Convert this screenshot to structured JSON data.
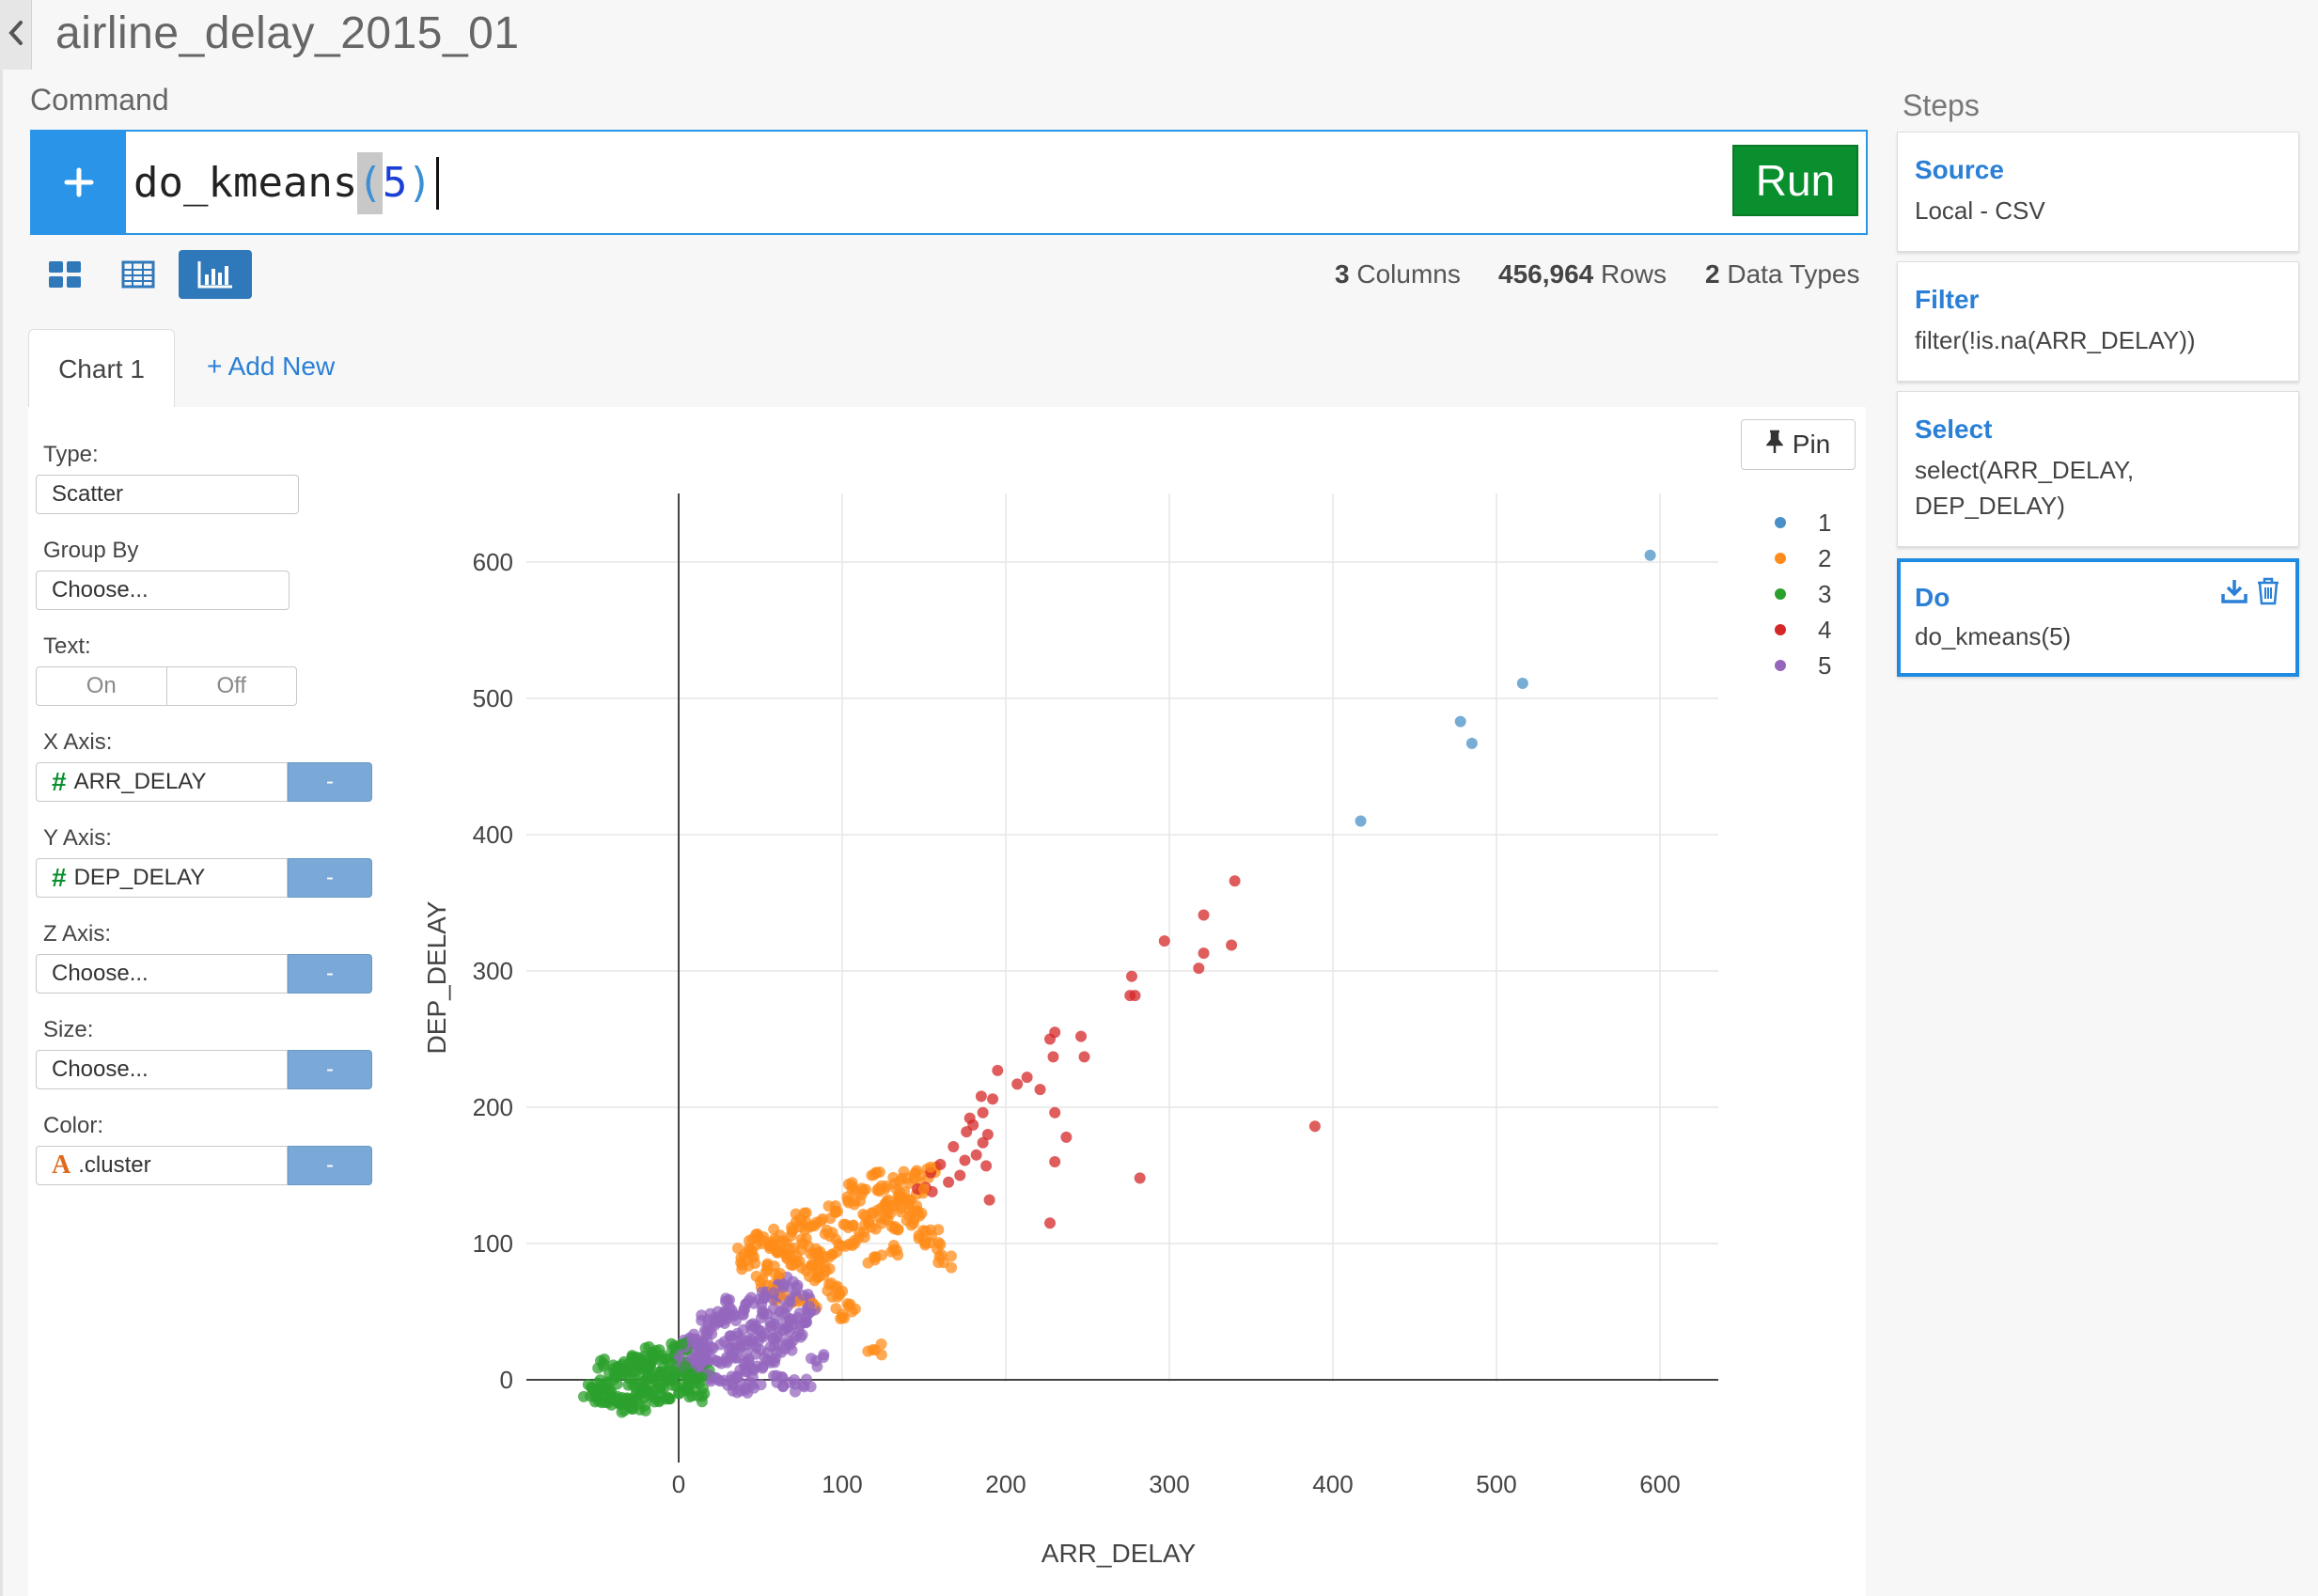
{
  "header": {
    "title": "airline_delay_2015_01",
    "command_label": "Command",
    "command": {
      "func": "do_kmeans",
      "open_paren": "(",
      "arg": "5",
      "close_paren": ")"
    },
    "run_label": "Run"
  },
  "stats": {
    "columns_count": "3",
    "columns_label": "Columns",
    "rows_count": "456,964",
    "rows_label": "Rows",
    "types_count": "2",
    "types_label": "Data Types"
  },
  "tabs": {
    "chart1": "Chart 1",
    "add_new": "+ Add New"
  },
  "chart_settings": {
    "type_label": "Type:",
    "type_value": "Scatter",
    "group_by_label": "Group By",
    "group_by_value": "Choose...",
    "text_label": "Text:",
    "text_on": "On",
    "text_off": "Off",
    "x_axis_label": "X Axis:",
    "x_axis_value": "ARR_DELAY",
    "y_axis_label": "Y Axis:",
    "y_axis_value": "DEP_DELAY",
    "z_axis_label": "Z Axis:",
    "z_axis_value": "Choose...",
    "size_label": "Size:",
    "size_value": "Choose...",
    "color_label": "Color:",
    "color_value": ".cluster",
    "minus_label": "-"
  },
  "pin_label": "Pin",
  "steps": {
    "label": "Steps",
    "items": [
      {
        "title": "Source",
        "body": "Local - CSV"
      },
      {
        "title": "Filter",
        "body": "filter(!is.na(ARR_DELAY))"
      },
      {
        "title": "Select",
        "body": "select(ARR_DELAY, DEP_DELAY)"
      },
      {
        "title": "Do",
        "body": "do_kmeans(5)"
      }
    ]
  },
  "icons": {
    "back": "chevron-left-icon",
    "plus": "plus-icon",
    "views": [
      "grid-view-icon",
      "table-view-icon",
      "chart-view-icon"
    ],
    "pin": "pin-icon",
    "download": "download-icon",
    "trash": "trash-icon"
  },
  "colors": {
    "accent": "#2a95e8",
    "run": "#0a8f2e",
    "cluster1": "#4a90c6",
    "cluster2": "#ff8c1a",
    "cluster3": "#2ca02c",
    "cluster4": "#d62728",
    "cluster5": "#9467bd"
  },
  "chart_data": {
    "type": "scatter",
    "xlabel": "ARR_DELAY",
    "ylabel": "DEP_DELAY",
    "xlim": [
      -80,
      640
    ],
    "ylim": [
      -40,
      640
    ],
    "xticks": [
      0,
      100,
      200,
      300,
      400,
      500,
      600
    ],
    "yticks": [
      0,
      100,
      200,
      300,
      400,
      500,
      600
    ],
    "grid": true,
    "legend_position": "top-right",
    "series": [
      {
        "name": "1",
        "color": "#4a90c6",
        "points": [
          [
            594,
            605
          ],
          [
            516,
            511
          ],
          [
            478,
            483
          ],
          [
            485,
            467
          ],
          [
            417,
            410
          ]
        ]
      },
      {
        "name": "4",
        "color": "#d62728",
        "points": [
          [
            340,
            366
          ],
          [
            321,
            341
          ],
          [
            297,
            322
          ],
          [
            321,
            313
          ],
          [
            338,
            319
          ],
          [
            318,
            302
          ],
          [
            277,
            296
          ],
          [
            276,
            282
          ],
          [
            279,
            282
          ],
          [
            227,
            250
          ],
          [
            230,
            255
          ],
          [
            246,
            252
          ],
          [
            248,
            237
          ],
          [
            229,
            237
          ],
          [
            195,
            227
          ],
          [
            213,
            222
          ],
          [
            207,
            217
          ],
          [
            221,
            213
          ],
          [
            185,
            208
          ],
          [
            192,
            206
          ],
          [
            230,
            196
          ],
          [
            237,
            178
          ],
          [
            186,
            196
          ],
          [
            178,
            192
          ],
          [
            180,
            187
          ],
          [
            176,
            182
          ],
          [
            189,
            180
          ],
          [
            186,
            174
          ],
          [
            230,
            160
          ],
          [
            188,
            157
          ],
          [
            175,
            161
          ],
          [
            168,
            171
          ],
          [
            182,
            165
          ],
          [
            160,
            158
          ],
          [
            172,
            150
          ],
          [
            154,
            152
          ],
          [
            165,
            145
          ],
          [
            190,
            132
          ],
          [
            155,
            138
          ],
          [
            151,
            141
          ],
          [
            146,
            140
          ],
          [
            282,
            148
          ],
          [
            389,
            186
          ],
          [
            227,
            115
          ]
        ]
      },
      {
        "name": "2",
        "color": "#ff8c1a",
        "points": [
          [
            120,
            22
          ],
          [
            100,
            48
          ],
          [
            108,
            52
          ],
          [
            98,
            64
          ],
          [
            92,
            70
          ],
          [
            86,
            76
          ],
          [
            78,
            80
          ],
          [
            72,
            86
          ],
          [
            66,
            90
          ],
          [
            60,
            94
          ],
          [
            56,
            98
          ],
          [
            52,
            102
          ],
          [
            48,
            104
          ],
          [
            62,
            106
          ],
          [
            70,
            110
          ],
          [
            80,
            112
          ],
          [
            88,
            118
          ],
          [
            96,
            124
          ],
          [
            104,
            130
          ],
          [
            112,
            136
          ],
          [
            122,
            140
          ],
          [
            132,
            144
          ],
          [
            140,
            148
          ],
          [
            148,
            150
          ],
          [
            154,
            156
          ],
          [
            150,
            140
          ],
          [
            142,
            132
          ],
          [
            136,
            126
          ],
          [
            126,
            118
          ],
          [
            118,
            112
          ],
          [
            110,
            104
          ],
          [
            102,
            98
          ],
          [
            94,
            92
          ],
          [
            86,
            88
          ],
          [
            76,
            100
          ],
          [
            68,
            96
          ],
          [
            62,
            78
          ],
          [
            54,
            84
          ],
          [
            46,
            90
          ],
          [
            40,
            92
          ],
          [
            38,
            86
          ],
          [
            50,
            72
          ],
          [
            58,
            66
          ],
          [
            64,
            62
          ],
          [
            74,
            58
          ],
          [
            82,
            56
          ],
          [
            90,
            80
          ],
          [
            94,
            108
          ],
          [
            102,
            114
          ],
          [
            114,
            120
          ],
          [
            124,
            126
          ],
          [
            134,
            110
          ],
          [
            144,
            118
          ],
          [
            150,
            102
          ],
          [
            158,
            96
          ],
          [
            162,
            86
          ],
          [
            154,
            110
          ],
          [
            130,
            94
          ],
          [
            120,
            88
          ],
          [
            84,
            96
          ],
          [
            74,
            118
          ],
          [
            106,
            142
          ],
          [
            118,
            150
          ],
          [
            128,
            132
          ],
          [
            138,
            138
          ],
          [
            146,
            124
          ]
        ]
      },
      {
        "name": "5",
        "color": "#9467bd",
        "points": [
          [
            70,
            72
          ],
          [
            64,
            68
          ],
          [
            58,
            64
          ],
          [
            52,
            60
          ],
          [
            46,
            56
          ],
          [
            40,
            52
          ],
          [
            34,
            48
          ],
          [
            28,
            44
          ],
          [
            22,
            40
          ],
          [
            16,
            36
          ],
          [
            10,
            30
          ],
          [
            4,
            24
          ],
          [
            0,
            18
          ],
          [
            6,
            12
          ],
          [
            12,
            8
          ],
          [
            18,
            4
          ],
          [
            24,
            0
          ],
          [
            30,
            -4
          ],
          [
            36,
            2
          ],
          [
            42,
            6
          ],
          [
            48,
            10
          ],
          [
            54,
            14
          ],
          [
            60,
            20
          ],
          [
            66,
            26
          ],
          [
            72,
            32
          ],
          [
            74,
            40
          ],
          [
            78,
            46
          ],
          [
            80,
            54
          ],
          [
            76,
            62
          ],
          [
            68,
            58
          ],
          [
            62,
            50
          ],
          [
            56,
            42
          ],
          [
            50,
            36
          ],
          [
            44,
            30
          ],
          [
            38,
            24
          ],
          [
            32,
            18
          ],
          [
            26,
            12
          ],
          [
            20,
            16
          ],
          [
            14,
            22
          ],
          [
            8,
            28
          ],
          [
            2,
            10
          ],
          [
            10,
            14
          ],
          [
            40,
            12
          ],
          [
            50,
            22
          ],
          [
            58,
            30
          ],
          [
            64,
            36
          ],
          [
            70,
            44
          ],
          [
            52,
            48
          ],
          [
            44,
            40
          ],
          [
            36,
            34
          ],
          [
            28,
            28
          ],
          [
            20,
            24
          ],
          [
            12,
            20
          ],
          [
            30,
            58
          ],
          [
            24,
            50
          ],
          [
            18,
            44
          ],
          [
            60,
            -2
          ],
          [
            68,
            -2
          ],
          [
            76,
            -4
          ],
          [
            84,
            14
          ],
          [
            46,
            -6
          ],
          [
            38,
            -8
          ]
        ]
      },
      {
        "name": "3",
        "color": "#2ca02c",
        "points": [
          [
            -52,
            -8
          ],
          [
            -46,
            -4
          ],
          [
            -40,
            0
          ],
          [
            -34,
            4
          ],
          [
            -28,
            6
          ],
          [
            -22,
            10
          ],
          [
            -16,
            14
          ],
          [
            -10,
            18
          ],
          [
            -4,
            22
          ],
          [
            2,
            26
          ],
          [
            -44,
            -12
          ],
          [
            -38,
            -16
          ],
          [
            -32,
            -14
          ],
          [
            -26,
            -10
          ],
          [
            -20,
            -6
          ],
          [
            -14,
            -2
          ],
          [
            -8,
            2
          ],
          [
            -2,
            6
          ],
          [
            4,
            10
          ],
          [
            8,
            4
          ],
          [
            10,
            -2
          ],
          [
            6,
            -8
          ],
          [
            0,
            -10
          ],
          [
            -6,
            -14
          ],
          [
            -12,
            -16
          ],
          [
            -18,
            -12
          ],
          [
            -24,
            -18
          ],
          [
            -30,
            -20
          ],
          [
            -36,
            -18
          ],
          [
            -42,
            -14
          ],
          [
            -48,
            -6
          ],
          [
            -54,
            -12
          ],
          [
            -36,
            6
          ],
          [
            -30,
            12
          ],
          [
            -24,
            16
          ],
          [
            -18,
            8
          ],
          [
            -12,
            4
          ],
          [
            -6,
            12
          ],
          [
            -20,
            0
          ],
          [
            -28,
            -4
          ],
          [
            12,
            -12
          ],
          [
            14,
            2
          ],
          [
            -4,
            -4
          ],
          [
            -10,
            8
          ],
          [
            -16,
            20
          ],
          [
            -26,
            14
          ],
          [
            -40,
            8
          ],
          [
            -46,
            12
          ]
        ]
      }
    ]
  }
}
